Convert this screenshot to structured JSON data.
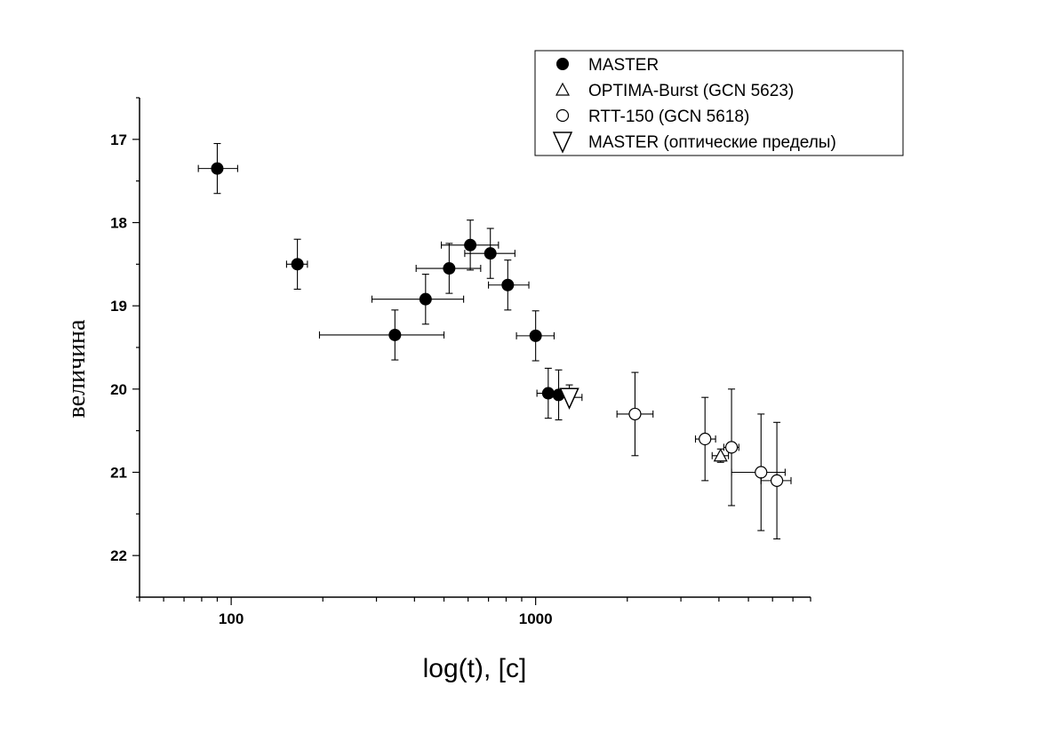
{
  "chart_data": {
    "type": "scatter",
    "title": "",
    "xlabel": "log(t), [c]",
    "ylabel": "величина",
    "x_scale": "log",
    "xlim": [
      50,
      8000
    ],
    "ylim": [
      22.5,
      16.5
    ],
    "y_inverted": true,
    "x_ticks": [
      100,
      1000
    ],
    "x_tick_labels": [
      "100",
      "1000"
    ],
    "y_ticks": [
      17,
      18,
      19,
      20,
      21,
      22
    ],
    "y_tick_labels": [
      "17",
      "18",
      "19",
      "20",
      "21",
      "22"
    ],
    "grid": false,
    "legend_position": "top-right",
    "legend": [
      {
        "label": "MASTER",
        "marker": "filled-circle"
      },
      {
        "label": "OPTIMA-Burst (GCN 5623)",
        "marker": "open-triangle"
      },
      {
        "label": "RTT-150 (GCN 5618)",
        "marker": "open-circle"
      },
      {
        "label": "MASTER (оптические пределы)",
        "marker": "down-triangle"
      }
    ],
    "series": [
      {
        "name": "MASTER",
        "marker": "filled-circle",
        "points": [
          {
            "x": 90,
            "y": 17.35,
            "xerr": [
              78,
              105
            ],
            "yerr": [
              17.05,
              17.65
            ]
          },
          {
            "x": 165,
            "y": 18.5,
            "xerr": [
              152,
              178
            ],
            "yerr": [
              18.2,
              18.8
            ]
          },
          {
            "x": 345,
            "y": 19.35,
            "xerr": [
              195,
              500
            ],
            "yerr": [
              19.05,
              19.65
            ]
          },
          {
            "x": 435,
            "y": 18.92,
            "xerr": [
              290,
              580
            ],
            "yerr": [
              18.62,
              19.22
            ]
          },
          {
            "x": 520,
            "y": 18.55,
            "xerr": [
              405,
              660
            ],
            "yerr": [
              18.25,
              18.85
            ]
          },
          {
            "x": 610,
            "y": 18.27,
            "xerr": [
              490,
              755
            ],
            "yerr": [
              17.97,
              18.57
            ]
          },
          {
            "x": 710,
            "y": 18.37,
            "xerr": [
              585,
              855
            ],
            "yerr": [
              18.07,
              18.67
            ]
          },
          {
            "x": 810,
            "y": 18.75,
            "xerr": [
              700,
              950
            ],
            "yerr": [
              18.45,
              19.05
            ]
          },
          {
            "x": 1000,
            "y": 19.36,
            "xerr": [
              865,
              1150
            ],
            "yerr": [
              19.06,
              19.66
            ]
          },
          {
            "x": 1100,
            "y": 20.05,
            "xerr": [
              1010,
              1200
            ],
            "yerr": [
              19.75,
              20.35
            ]
          },
          {
            "x": 1190,
            "y": 20.07,
            "xerr": [
              1100,
              1290
            ],
            "yerr": [
              19.77,
              20.37
            ]
          }
        ]
      },
      {
        "name": "OPTIMA-Burst (GCN 5623)",
        "marker": "open-triangle",
        "points": [
          {
            "x": 4050,
            "y": 20.8,
            "xerr": [
              3800,
              4300
            ],
            "yerr": [
              20.72,
              20.88
            ]
          }
        ]
      },
      {
        "name": "RTT-150 (GCN 5618)",
        "marker": "open-circle",
        "points": [
          {
            "x": 2120,
            "y": 20.3,
            "xerr": [
              1850,
              2430
            ],
            "yerr": [
              19.8,
              20.8
            ]
          },
          {
            "x": 3600,
            "y": 20.6,
            "xerr": [
              3350,
              3900
            ],
            "yerr": [
              20.1,
              21.1
            ]
          },
          {
            "x": 4400,
            "y": 20.7,
            "xerr": [
              4150,
              4650
            ],
            "yerr": [
              20.0,
              21.4
            ]
          },
          {
            "x": 5500,
            "y": 21.0,
            "xerr": [
              4400,
              6600
            ],
            "yerr": [
              20.3,
              21.7
            ]
          },
          {
            "x": 6200,
            "y": 21.1,
            "xerr": [
              5500,
              6900
            ],
            "yerr": [
              20.4,
              21.8
            ]
          }
        ]
      },
      {
        "name": "MASTER (оптические пределы)",
        "marker": "down-triangle",
        "points": [
          {
            "x": 1290,
            "y": 20.1,
            "xerr": [
              1170,
              1420
            ],
            "yerr": [
              19.95,
              20.1
            ]
          }
        ]
      }
    ]
  }
}
